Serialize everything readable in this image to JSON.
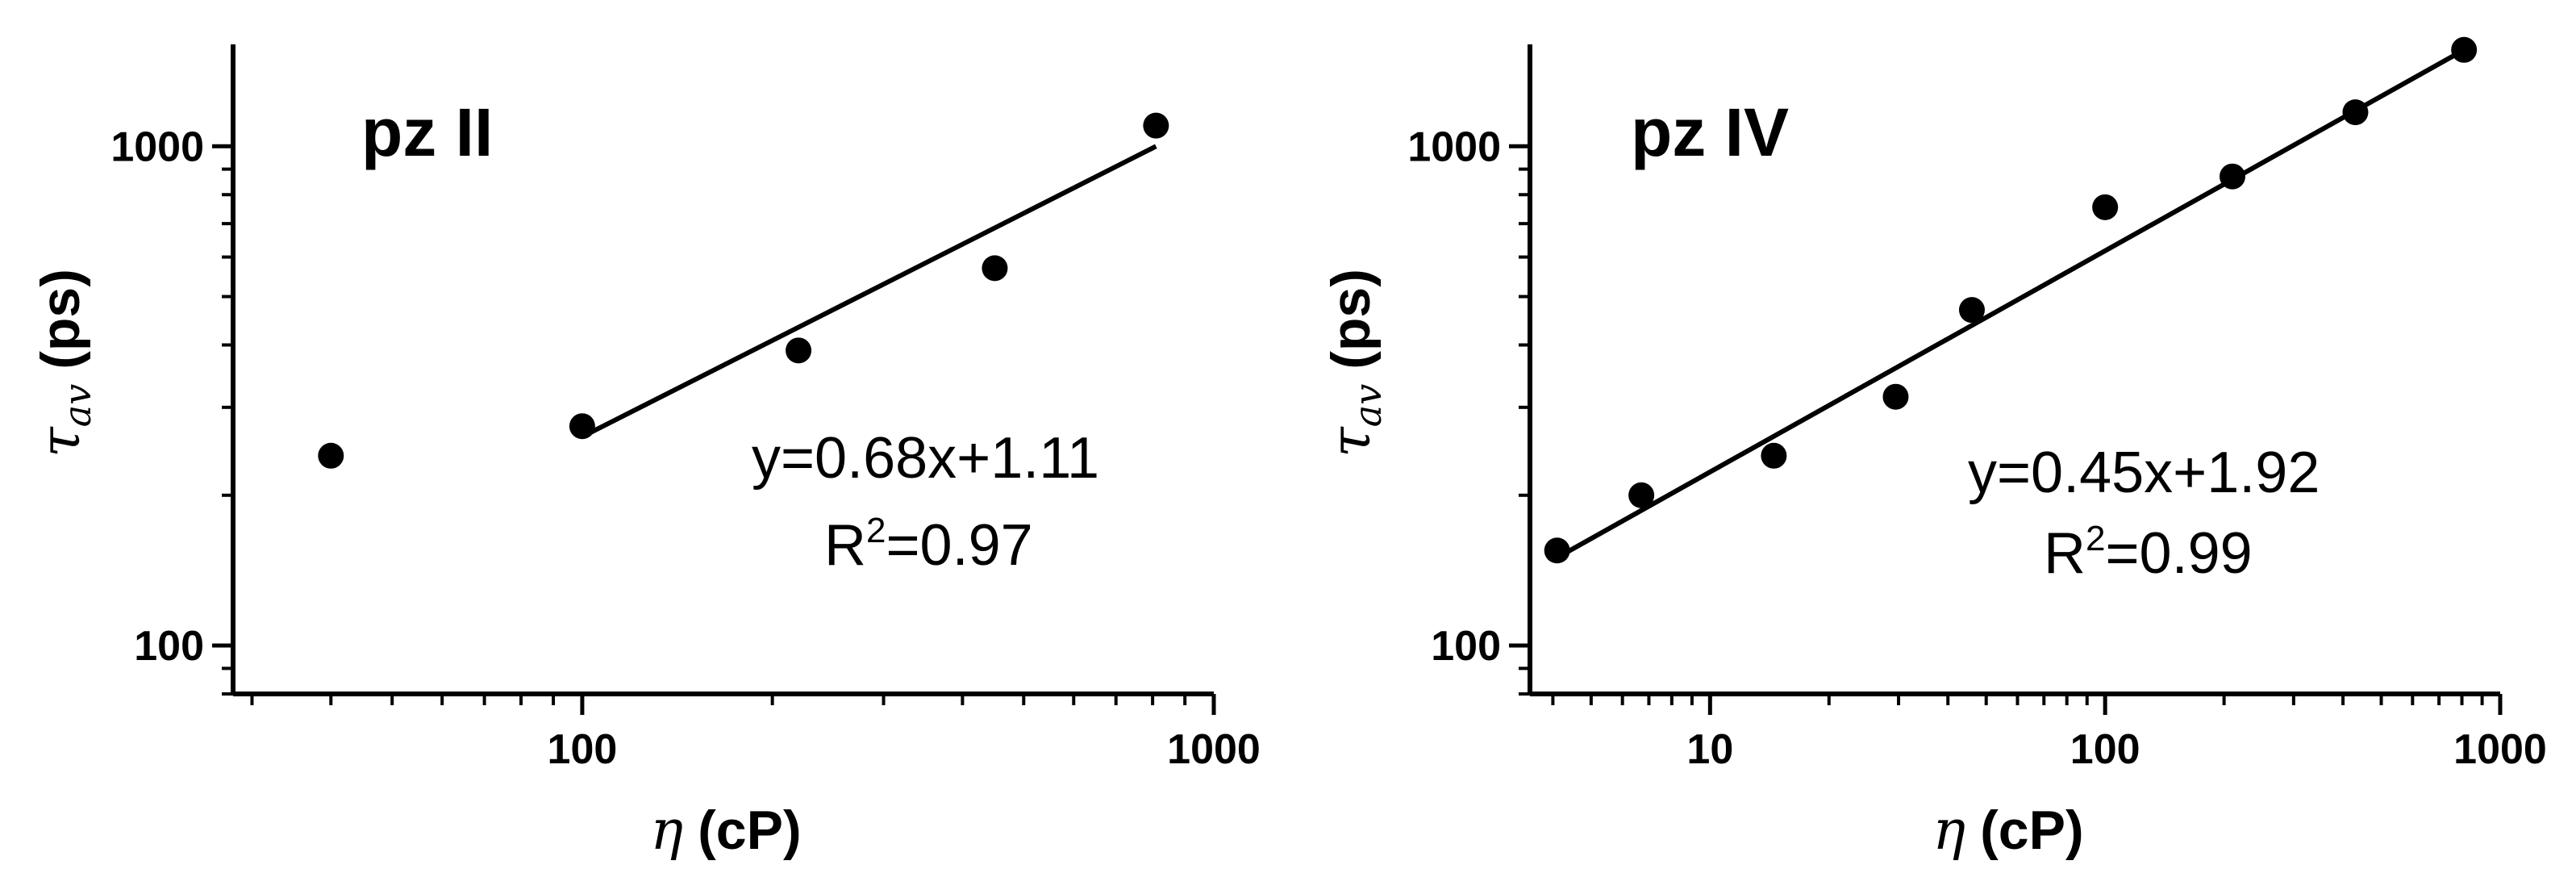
{
  "chart_data": [
    {
      "type": "scatter",
      "title": "pz II",
      "xlabel_symbol": "η",
      "xlabel_unit": "(cP)",
      "ylabel_symbol": "τ",
      "ylabel_subscript": "av",
      "ylabel_unit": "(ps)",
      "xscale": "log",
      "yscale": "log",
      "xlim": [
        28,
        1000
      ],
      "ylim": [
        80,
        1600
      ],
      "xticks": [
        100,
        1000
      ],
      "xtick_labels": [
        "100",
        "1000"
      ],
      "yticks": [
        100,
        1000
      ],
      "ytick_labels": [
        "100",
        "1000"
      ],
      "points": [
        {
          "x": 40,
          "y": 240
        },
        {
          "x": 100,
          "y": 275
        },
        {
          "x": 220,
          "y": 390
        },
        {
          "x": 450,
          "y": 570
        },
        {
          "x": 810,
          "y": 1100
        }
      ],
      "fit_line": {
        "x_start": 100,
        "x_end": 810,
        "y_start": 262,
        "y_end": 1000
      },
      "equation": "y=0.68x+1.11",
      "r2_prefix": "R",
      "r2_exponent": "2",
      "r2_value": "=0.97"
    },
    {
      "type": "scatter",
      "title": "pz IV",
      "xlabel_symbol": "η",
      "xlabel_unit": "(cP)",
      "ylabel_symbol": "τ",
      "ylabel_subscript": "av",
      "ylabel_unit": "(ps)",
      "xscale": "log",
      "yscale": "log",
      "xlim": [
        3.5,
        1000
      ],
      "ylim": [
        80,
        1600
      ],
      "xticks": [
        10,
        100,
        1000
      ],
      "xtick_labels": [
        "10",
        "100",
        "1000"
      ],
      "yticks": [
        100,
        1000
      ],
      "ytick_labels": [
        "100",
        "1000"
      ],
      "points": [
        {
          "x": 4.1,
          "y": 155
        },
        {
          "x": 6.7,
          "y": 200
        },
        {
          "x": 14.5,
          "y": 240
        },
        {
          "x": 29.5,
          "y": 315
        },
        {
          "x": 46,
          "y": 470
        },
        {
          "x": 100,
          "y": 755
        },
        {
          "x": 210,
          "y": 870
        },
        {
          "x": 430,
          "y": 1170
        },
        {
          "x": 810,
          "y": 1560
        }
      ],
      "fit_line": {
        "x_start": 4.1,
        "x_end": 810,
        "y_start": 150,
        "y_end": 1560
      },
      "equation": "y=0.45x+1.92",
      "r2_prefix": "R",
      "r2_exponent": "2",
      "r2_value": "=0.99"
    }
  ]
}
